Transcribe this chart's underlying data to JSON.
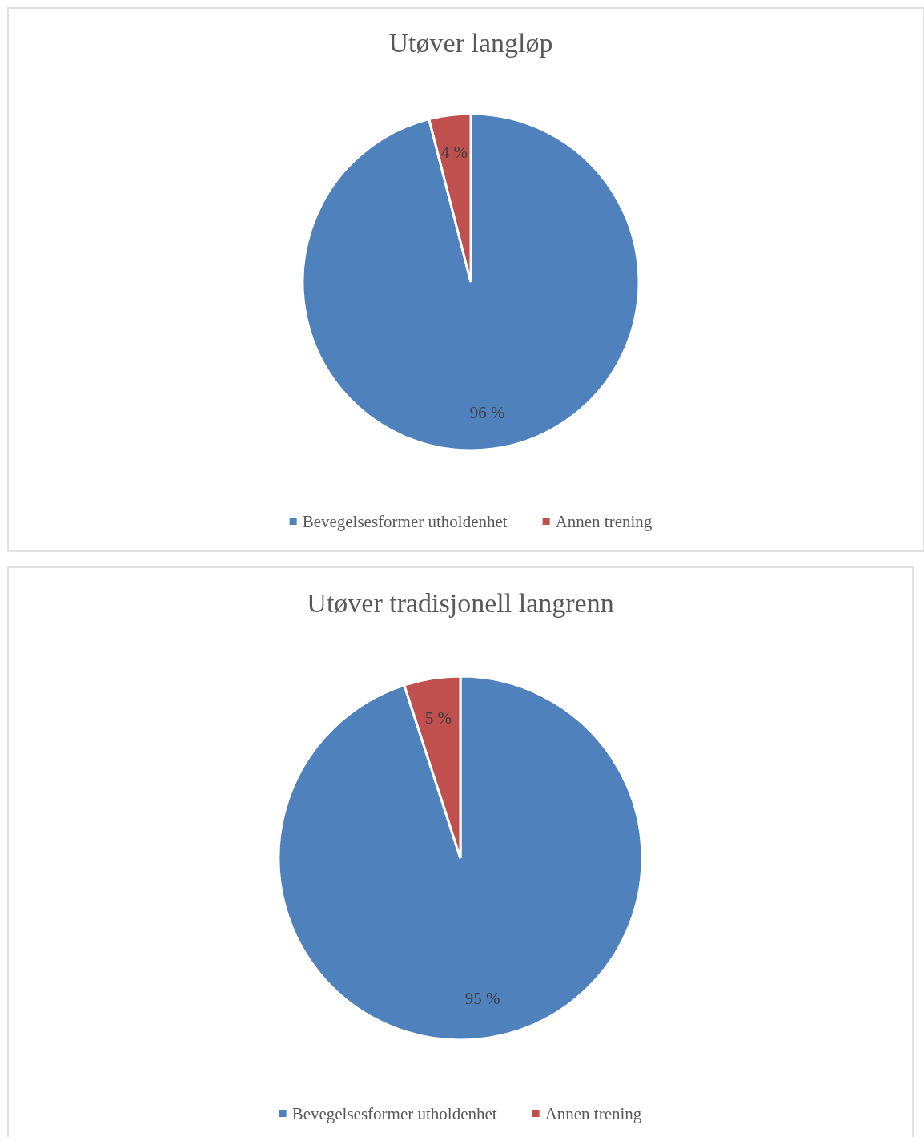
{
  "chart_data": [
    {
      "type": "pie",
      "title": "Utøver langløp",
      "categories": [
        "Bevegelsesformer utholdenhet",
        "Annen trening"
      ],
      "values": [
        96,
        4
      ],
      "colors": [
        "#4f81bd",
        "#c0504d"
      ],
      "value_labels": [
        "96 %",
        "4 %"
      ],
      "legend": "bottom"
    },
    {
      "type": "pie",
      "title": "Utøver tradisjonell langrenn",
      "categories": [
        "Bevegelsesformer utholdenhet",
        "Annen trening"
      ],
      "values": [
        95,
        5
      ],
      "colors": [
        "#4f81bd",
        "#c0504d"
      ],
      "value_labels": [
        "95 %",
        "5 %"
      ],
      "legend": "bottom"
    }
  ]
}
